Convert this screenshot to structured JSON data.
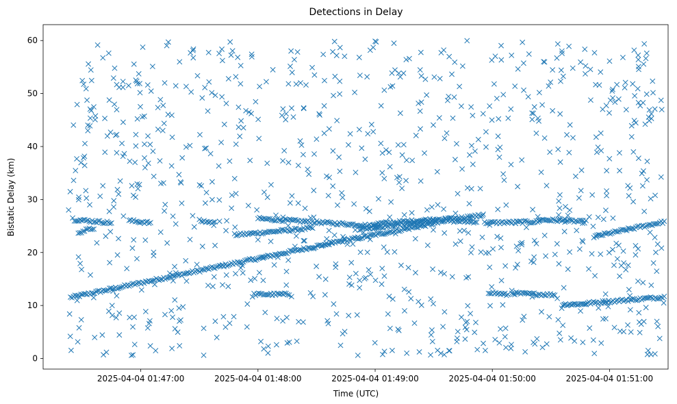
{
  "chart_data": {
    "type": "scatter",
    "title": "Detections in Delay",
    "xlabel": "Time (UTC)",
    "ylabel": "Bistatic Delay (km)",
    "marker": "x",
    "color": "#1f77b4",
    "grid": false,
    "legend": "none",
    "xlim": [
      "2025-04-04 01:46:10",
      "2025-04-04 01:51:30"
    ],
    "ylim": [
      -2,
      63
    ],
    "x_ticks": [
      "2025-04-04 01:47:00",
      "2025-04-04 01:48:00",
      "2025-04-04 01:49:00",
      "2025-04-04 01:50:00",
      "2025-04-04 01:51:00"
    ],
    "y_ticks": [
      0,
      10,
      20,
      30,
      40,
      50,
      60
    ],
    "tracks": [
      {
        "x0": "2025-04-04 01:46:24",
        "y0": 11.5,
        "x1": "2025-04-04 01:48:38",
        "y1": 21.8
      },
      {
        "x0": "2025-04-04 01:47:48",
        "y0": 23.3,
        "x1": "2025-04-04 01:48:28",
        "y1": 24.6
      },
      {
        "x0": "2025-04-04 01:48:38",
        "y0": 21.8,
        "x1": "2025-04-04 01:49:32",
        "y1": 25.6
      },
      {
        "x0": "2025-04-04 01:48:00",
        "y0": 26.4,
        "x1": "2025-04-04 01:49:01",
        "y1": 25.0
      },
      {
        "x0": "2025-04-04 01:48:52",
        "y0": 24.4,
        "x1": "2025-04-04 01:49:55",
        "y1": 27.0
      },
      {
        "x0": "2025-04-04 01:49:00",
        "y0": 25.4,
        "x1": "2025-04-04 01:49:32",
        "y1": 26.3
      },
      {
        "x0": "2025-04-04 01:49:34",
        "y0": 26.0,
        "x1": "2025-04-04 01:49:52",
        "y1": 25.8
      },
      {
        "x0": "2025-04-04 01:49:56",
        "y0": 25.6,
        "x1": "2025-04-04 01:50:24",
        "y1": 25.8
      },
      {
        "x0": "2025-04-04 01:50:24",
        "y0": 26.2,
        "x1": "2025-04-04 01:50:48",
        "y1": 25.8
      },
      {
        "x0": "2025-04-04 01:50:52",
        "y0": 23.0,
        "x1": "2025-04-04 01:51:28",
        "y1": 25.8
      },
      {
        "x0": "2025-04-04 01:47:58",
        "y0": 12.1,
        "x1": "2025-04-04 01:48:16",
        "y1": 12.1
      },
      {
        "x0": "2025-04-04 01:49:58",
        "y0": 12.5,
        "x1": "2025-04-04 01:50:08",
        "y1": 12.0
      },
      {
        "x0": "2025-04-04 01:50:10",
        "y0": 12.3,
        "x1": "2025-04-04 01:50:32",
        "y1": 12.0
      },
      {
        "x0": "2025-04-04 01:50:36",
        "y0": 10.2,
        "x1": "2025-04-04 01:50:48",
        "y1": 10.3
      },
      {
        "x0": "2025-04-04 01:50:48",
        "y0": 10.4,
        "x1": "2025-04-04 01:51:28",
        "y1": 11.6
      },
      {
        "x0": "2025-04-04 01:46:26",
        "y0": 26.2,
        "x1": "2025-04-04 01:46:45",
        "y1": 25.6
      },
      {
        "x0": "2025-04-04 01:46:54",
        "y0": 26.0,
        "x1": "2025-04-04 01:47:05",
        "y1": 25.6
      },
      {
        "x0": "2025-04-04 01:47:30",
        "y0": 26.0,
        "x1": "2025-04-04 01:47:38",
        "y1": 25.6
      },
      {
        "x0": "2025-04-04 01:46:28",
        "y0": 23.8,
        "x1": "2025-04-04 01:46:36",
        "y1": 24.6
      }
    ],
    "noise": {
      "count": 950,
      "y_range": [
        0.5,
        60
      ]
    }
  }
}
